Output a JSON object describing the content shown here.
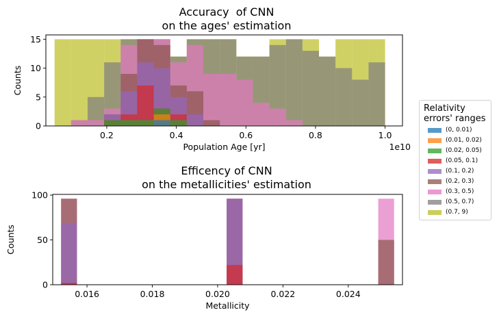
{
  "colors": {
    "axis": "#000000",
    "background": "#ffffff"
  },
  "legend": {
    "title": "Relativity\nerrors' ranges",
    "placement": "right",
    "items": [
      {
        "label": "(0, 0.01)",
        "color": "#1f77b4"
      },
      {
        "label": "(0.01, 0.02)",
        "color": "#ff7f0e"
      },
      {
        "label": "(0.02, 0.05)",
        "color": "#2ca02c"
      },
      {
        "label": "(0.05, 0.1)",
        "color": "#d62728"
      },
      {
        "label": "(0.1, 0.2)",
        "color": "#9467bd"
      },
      {
        "label": "(0.2, 0.3)",
        "color": "#8c564b"
      },
      {
        "label": "(0.3, 0.5)",
        "color": "#e377c2"
      },
      {
        "label": "(0.5, 0.7)",
        "color": "#7f7f7f"
      },
      {
        "label": "(0.7, 9)",
        "color": "#bcbd22"
      }
    ]
  },
  "chart_data": [
    {
      "type": "bar",
      "title_line1": "Accuracy  of CNN",
      "title_line2": "on the ages' estimation",
      "xlabel": "Population Age [yr]",
      "ylabel": "Counts",
      "x_offset_label": "1e10",
      "xlim": [
        0.025,
        1.05
      ],
      "ylim": [
        0,
        15.75
      ],
      "xticks": [
        0.2,
        0.4,
        0.6,
        0.8,
        1.0
      ],
      "xtick_labels": [
        "0.2",
        "0.4",
        "0.6",
        "0.8",
        "1.0"
      ],
      "yticks": [
        0,
        5,
        10,
        15
      ],
      "ytick_labels": [
        "0",
        "5",
        "10",
        "15"
      ],
      "grid": false,
      "alpha": 0.7,
      "bin_edges": [
        0.05,
        0.0975,
        0.145,
        0.1925,
        0.24,
        0.2875,
        0.335,
        0.3825,
        0.43,
        0.4775,
        0.525,
        0.5725,
        0.62,
        0.6675,
        0.715,
        0.7625,
        0.81,
        0.8575,
        0.905,
        0.9525,
        1.0
      ],
      "series": [
        {
          "name": "(0, 0.01)",
          "color": "#1f77b4",
          "values": [
            0,
            0,
            0,
            0,
            0,
            0,
            1,
            0,
            0,
            0,
            0,
            0,
            0,
            0,
            0,
            0,
            0,
            0,
            0,
            0
          ]
        },
        {
          "name": "(0.01, 0.02)",
          "color": "#ff7f0e",
          "values": [
            0,
            0,
            0,
            0,
            0,
            0,
            2,
            0,
            0,
            0,
            0,
            0,
            0,
            0,
            0,
            0,
            0,
            0,
            0,
            0
          ]
        },
        {
          "name": "(0.02, 0.05)",
          "color": "#2ca02c",
          "values": [
            0,
            0,
            0,
            1,
            1,
            1,
            3,
            1,
            0,
            0,
            0,
            0,
            0,
            0,
            0,
            0,
            0,
            0,
            0,
            0
          ]
        },
        {
          "name": "(0.05, 0.1)",
          "color": "#d62728",
          "values": [
            0,
            0,
            0,
            1,
            2,
            7,
            3,
            2,
            0,
            0,
            0,
            0,
            0,
            0,
            0,
            0,
            0,
            0,
            0,
            0
          ]
        },
        {
          "name": "(0.1, 0.2)",
          "color": "#9467bd",
          "values": [
            0,
            0,
            0,
            2,
            6,
            11,
            10,
            5,
            2,
            0,
            0,
            0,
            0,
            0,
            0,
            0,
            0,
            0,
            0,
            0
          ]
        },
        {
          "name": "(0.2, 0.3)",
          "color": "#8c564b",
          "values": [
            0,
            0,
            0,
            2,
            9,
            15,
            14,
            7,
            6,
            1,
            0,
            0,
            0,
            0,
            0,
            0,
            0,
            0,
            0,
            0
          ]
        },
        {
          "name": "(0.3, 0.5)",
          "color": "#e377c2",
          "values": [
            0,
            1,
            1,
            3,
            14,
            15,
            15,
            11,
            14,
            9,
            9,
            8,
            4,
            3,
            1,
            0,
            0,
            0,
            0,
            0
          ]
        },
        {
          "name": "(0.5, 0.7)",
          "color": "#7f7f7f",
          "values": [
            0,
            1,
            5,
            11,
            15,
            15,
            15,
            12,
            15,
            15,
            15,
            12,
            12,
            14,
            15,
            13,
            12,
            10,
            8,
            11
          ]
        },
        {
          "name": "(0.7, 9)",
          "color": "#bcbd22",
          "values": [
            15,
            15,
            15,
            15,
            15,
            15,
            15,
            12,
            15,
            15,
            15,
            12,
            12,
            15,
            15,
            15,
            12,
            15,
            15,
            15
          ]
        }
      ]
    },
    {
      "type": "bar",
      "title_line1": "Efficency of CNN",
      "title_line2": "on the metallicities' estimation",
      "xlabel": "Metallicity",
      "ylabel": "Counts",
      "xlim": [
        0.01495,
        0.02566
      ],
      "ylim": [
        0,
        100.8
      ],
      "xticks": [
        0.016,
        0.018,
        0.02,
        0.022,
        0.024
      ],
      "xtick_labels": [
        "0.016",
        "0.018",
        "0.020",
        "0.022",
        "0.024"
      ],
      "yticks": [
        0,
        50,
        100
      ],
      "ytick_labels": [
        "0",
        "50",
        "100"
      ],
      "grid": false,
      "alpha": 0.7,
      "bar_width": 0.000486,
      "positions": [
        0.01545,
        0.02052,
        0.02516
      ],
      "series": [
        {
          "name": "(0.05, 0.1)",
          "color": "#d62728",
          "values": [
            2,
            22,
            0
          ]
        },
        {
          "name": "(0.1, 0.2)",
          "color": "#9467bd",
          "values": [
            69,
            96,
            0
          ]
        },
        {
          "name": "(0.2, 0.3)",
          "color": "#8c564b",
          "values": [
            96,
            96,
            50
          ]
        },
        {
          "name": "(0.3, 0.5)",
          "color": "#e377c2",
          "values": [
            96,
            96,
            96
          ]
        }
      ]
    }
  ]
}
